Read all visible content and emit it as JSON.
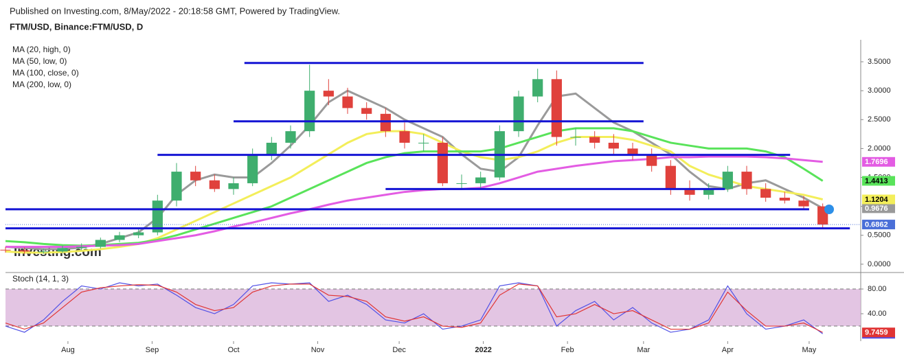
{
  "header": {
    "published": "Published on Investing.com, 8/May/2022 - 20:18:58 GMT, Powered by TradingView.",
    "symbol": "FTM/USD, Binance:FTM/USD, D",
    "watermark": "Investing.com"
  },
  "chart_data": [
    {
      "type": "candlestick",
      "legend": [
        "MA (20, high, 0)",
        "MA (50, low, 0)",
        "MA (100, close, 0)",
        "MA (200, low, 0)"
      ],
      "x": [
        0,
        7,
        14,
        21,
        28,
        35,
        42,
        49,
        56,
        63,
        70,
        77,
        84,
        91,
        98,
        105,
        112,
        119,
        126,
        133,
        140,
        147,
        154,
        161,
        168,
        175,
        182,
        189,
        196,
        203,
        210,
        217,
        224,
        231,
        238,
        245,
        252,
        259,
        266,
        273,
        280,
        287,
        294,
        301
      ],
      "open": [
        0.25,
        0.24,
        0.22,
        0.22,
        0.28,
        0.3,
        0.42,
        0.5,
        0.55,
        1.1,
        1.6,
        1.45,
        1.3,
        1.4,
        1.9,
        2.1,
        2.3,
        3.0,
        2.9,
        2.7,
        2.6,
        2.3,
        2.1,
        2.1,
        1.4,
        1.4,
        1.5,
        2.3,
        2.9,
        3.2,
        2.2,
        2.2,
        2.1,
        2.0,
        1.9,
        1.7,
        1.3,
        1.2,
        1.3,
        1.6,
        1.3,
        1.15,
        1.1,
        1.0
      ],
      "high": [
        0.3,
        0.29,
        0.27,
        0.32,
        0.36,
        0.46,
        0.56,
        0.62,
        1.2,
        1.75,
        1.7,
        1.55,
        1.5,
        2.0,
        2.2,
        2.4,
        3.45,
        3.2,
        3.05,
        2.8,
        2.7,
        2.45,
        2.25,
        2.2,
        1.55,
        1.6,
        2.4,
        3.0,
        3.38,
        3.35,
        2.35,
        2.3,
        2.25,
        2.1,
        2.0,
        1.8,
        1.45,
        1.4,
        1.7,
        1.7,
        1.4,
        1.25,
        1.18,
        1.05
      ],
      "low": [
        0.2,
        0.18,
        0.18,
        0.2,
        0.24,
        0.27,
        0.38,
        0.45,
        0.5,
        1.0,
        1.35,
        1.25,
        1.2,
        1.35,
        1.8,
        2.0,
        2.2,
        2.75,
        2.6,
        2.5,
        2.2,
        2.0,
        1.95,
        1.35,
        1.3,
        1.32,
        1.45,
        2.2,
        2.8,
        2.05,
        2.05,
        2.0,
        1.9,
        1.8,
        1.6,
        1.2,
        1.1,
        1.12,
        1.25,
        1.2,
        1.08,
        1.05,
        0.95,
        0.62
      ],
      "close": [
        0.24,
        0.22,
        0.22,
        0.28,
        0.3,
        0.42,
        0.5,
        0.55,
        1.1,
        1.6,
        1.45,
        1.3,
        1.4,
        1.9,
        2.1,
        2.3,
        3.0,
        2.9,
        2.7,
        2.6,
        2.3,
        2.1,
        2.1,
        1.4,
        1.4,
        1.5,
        2.3,
        2.9,
        3.2,
        2.2,
        2.2,
        2.1,
        2.0,
        1.9,
        1.7,
        1.3,
        1.2,
        1.3,
        1.6,
        1.3,
        1.15,
        1.1,
        1.0,
        0.6862
      ],
      "up_color": "#3fae6e",
      "down_color": "#e0413c",
      "last_color": "#4a6fd8",
      "series": [
        {
          "color": "#9a9a9a",
          "values": [
            0.3,
            0.28,
            0.26,
            0.26,
            0.29,
            0.35,
            0.45,
            0.55,
            0.8,
            1.2,
            1.45,
            1.55,
            1.5,
            1.5,
            1.75,
            2.05,
            2.4,
            2.8,
            3.0,
            2.85,
            2.7,
            2.5,
            2.35,
            2.2,
            1.9,
            1.65,
            1.6,
            1.85,
            2.4,
            2.9,
            2.95,
            2.7,
            2.45,
            2.3,
            2.1,
            1.9,
            1.6,
            1.35,
            1.3,
            1.4,
            1.45,
            1.3,
            1.15,
            0.9676
          ]
        },
        {
          "color": "#f3ee5a",
          "values": [
            0.22,
            0.2,
            0.2,
            0.21,
            0.23,
            0.26,
            0.3,
            0.35,
            0.45,
            0.6,
            0.75,
            0.9,
            1.05,
            1.2,
            1.35,
            1.5,
            1.7,
            1.9,
            2.1,
            2.25,
            2.3,
            2.3,
            2.25,
            2.1,
            1.95,
            1.85,
            1.8,
            1.85,
            1.95,
            2.1,
            2.2,
            2.2,
            2.2,
            2.15,
            2.05,
            1.95,
            1.7,
            1.55,
            1.45,
            1.35,
            1.3,
            1.25,
            1.2,
            1.1204
          ]
        },
        {
          "color": "#59e35a",
          "values": [
            0.4,
            0.38,
            0.35,
            0.33,
            0.32,
            0.33,
            0.35,
            0.37,
            0.42,
            0.5,
            0.6,
            0.7,
            0.8,
            0.9,
            1.0,
            1.15,
            1.3,
            1.45,
            1.6,
            1.75,
            1.85,
            1.92,
            1.95,
            1.95,
            1.95,
            1.95,
            2.0,
            2.1,
            2.2,
            2.3,
            2.35,
            2.35,
            2.35,
            2.3,
            2.2,
            2.1,
            2.05,
            2.0,
            2.0,
            2.0,
            1.95,
            1.85,
            1.65,
            1.4413
          ]
        },
        {
          "color": "#e35ce3",
          "values": [
            0.3,
            0.3,
            0.3,
            0.3,
            0.31,
            0.32,
            0.33,
            0.35,
            0.4,
            0.45,
            0.5,
            0.57,
            0.65,
            0.72,
            0.8,
            0.88,
            0.95,
            1.03,
            1.1,
            1.15,
            1.2,
            1.25,
            1.28,
            1.3,
            1.3,
            1.32,
            1.4,
            1.5,
            1.6,
            1.65,
            1.7,
            1.74,
            1.78,
            1.8,
            1.82,
            1.85,
            1.85,
            1.86,
            1.86,
            1.86,
            1.85,
            1.83,
            1.8,
            1.7696
          ]
        }
      ],
      "levels": [
        {
          "value": 3.48,
          "from": 88,
          "to": 235
        },
        {
          "value": 2.47,
          "from": 84,
          "to": 235
        },
        {
          "value": 1.89,
          "from": 56,
          "to": 289
        },
        {
          "value": 1.3,
          "from": 140,
          "to": 265
        },
        {
          "value": 0.95,
          "from": 0,
          "to": 296
        },
        {
          "value": 0.62,
          "from": 0,
          "to": 311
        }
      ],
      "level_color": "#1414d4",
      "xlim": [
        0,
        315
      ],
      "ylim": [
        -0.12,
        3.88
      ],
      "yticks": [
        {
          "value": 0,
          "label": "0.0000"
        },
        {
          "value": 0.5,
          "label": "0.5000"
        },
        {
          "value": 1,
          "label": "1.0000"
        },
        {
          "value": 1.5,
          "label": "1.5000"
        },
        {
          "value": 2,
          "label": "2.0000"
        },
        {
          "value": 2.5,
          "label": "2.5000"
        },
        {
          "value": 3,
          "label": "3.0000"
        },
        {
          "value": 3.5,
          "label": "3.5000"
        }
      ]
    },
    {
      "type": "line",
      "title": "Stoch (14, 1, 3)",
      "x": [
        0,
        7,
        14,
        21,
        28,
        35,
        42,
        49,
        56,
        63,
        70,
        77,
        84,
        91,
        98,
        105,
        112,
        119,
        126,
        133,
        140,
        147,
        154,
        161,
        168,
        175,
        182,
        189,
        196,
        203,
        210,
        217,
        224,
        231,
        238,
        245,
        252,
        259,
        266,
        273,
        280,
        287,
        294,
        301
      ],
      "series": [
        {
          "color": "#5050e6",
          "values": [
            20,
            10,
            30,
            60,
            85,
            80,
            90,
            85,
            88,
            70,
            50,
            40,
            55,
            85,
            90,
            88,
            90,
            60,
            70,
            55,
            30,
            25,
            40,
            15,
            20,
            30,
            85,
            90,
            85,
            20,
            45,
            60,
            30,
            50,
            25,
            10,
            15,
            30,
            85,
            40,
            15,
            20,
            30,
            7.5511
          ]
        },
        {
          "color": "#e03434",
          "values": [
            25,
            15,
            25,
            50,
            75,
            82,
            85,
            87,
            86,
            75,
            55,
            45,
            50,
            75,
            85,
            88,
            88,
            70,
            68,
            60,
            35,
            28,
            35,
            20,
            18,
            25,
            70,
            88,
            85,
            35,
            40,
            55,
            40,
            45,
            30,
            15,
            15,
            25,
            75,
            45,
            20,
            20,
            25,
            9.7459
          ]
        }
      ],
      "band": [
        20,
        80
      ],
      "band_color": "#dcb6dc",
      "xlim": [
        0,
        315
      ],
      "ylim": [
        -4.4,
        105.6
      ],
      "yticks": [
        {
          "value": 40,
          "label": "40.00"
        },
        {
          "value": 80,
          "label": "80.00"
        }
      ],
      "xticks": [
        {
          "value": 23,
          "label": "Aug"
        },
        {
          "value": 54,
          "label": "Sep"
        },
        {
          "value": 84,
          "label": "Oct"
        },
        {
          "value": 115,
          "label": "Nov"
        },
        {
          "value": 145,
          "label": "Dec"
        },
        {
          "value": 176,
          "label": "2022"
        },
        {
          "value": 207,
          "label": "Feb"
        },
        {
          "value": 235,
          "label": "Mar"
        },
        {
          "value": 266,
          "label": "Apr"
        },
        {
          "value": 296,
          "label": "May"
        }
      ]
    }
  ]
}
